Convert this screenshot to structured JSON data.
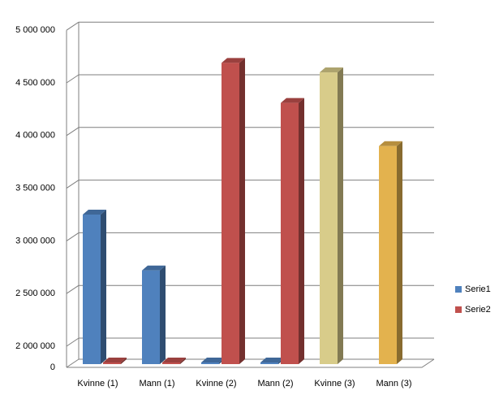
{
  "chart_data": {
    "type": "bar3d",
    "categories": [
      "Kvinne (1)",
      "Mann (1)",
      "Kvinne (2)",
      "Mann (2)",
      "Kvinne (3)",
      "Mann (3)"
    ],
    "series": [
      {
        "name": "Serie1",
        "color": "#4f81bd",
        "point_colors": [
          "#4f81bd",
          "#4f81bd",
          "#4f81bd",
          "#4f81bd",
          "#d8cc8a",
          "#e3b24e"
        ],
        "values": [
          3250000,
          2720000,
          0,
          0,
          4600000,
          3900000
        ]
      },
      {
        "name": "Serie2",
        "color": "#c0504d",
        "values": [
          0,
          0,
          4690000,
          4310000,
          null,
          null
        ]
      }
    ],
    "ylim": [
      0,
      5000000
    ],
    "yticks": [
      0,
      {
        "value": 2000000,
        "label": "2 000 000"
      },
      {
        "value": 2500000,
        "label": "2 500 000"
      },
      {
        "value": 3000000,
        "label": "3 000 000"
      },
      {
        "value": 3500000,
        "label": "3 500 000"
      },
      {
        "value": 4000000,
        "label": "4 000 000"
      },
      {
        "value": 4500000,
        "label": "4 500 000"
      },
      {
        "value": 5000000,
        "label": "5 000 000"
      }
    ],
    "grid": true,
    "legend": "right"
  }
}
